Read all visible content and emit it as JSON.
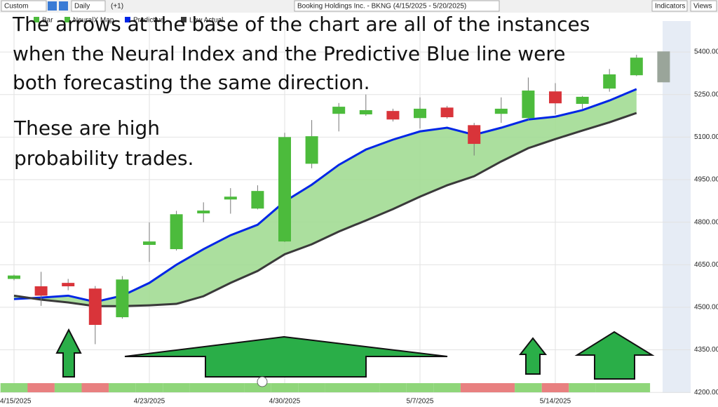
{
  "toolbar": {
    "range": "Custom",
    "period": "Daily",
    "offset": "(+1)",
    "symbol": "Booking Holdings Inc. - BKNG (4/15/2025 - 5/20/2025)",
    "indicators": "Indicators",
    "views": "Views"
  },
  "annotations": [
    "The arrows at the base of the chart are all of the instances",
    "when the Neural Index and the Predictive Blue line were",
    "both forecasting the same direction.",
    "These are high",
    "probability trades."
  ],
  "chart_data": {
    "type": "candlestick",
    "categories": [
      "4/15/2025",
      null,
      null,
      null,
      null,
      "4/23/2025",
      null,
      null,
      null,
      null,
      "4/30/2025",
      null,
      null,
      null,
      null,
      "5/7/2025",
      null,
      null,
      null,
      null,
      "5/14/2025",
      null,
      null,
      null
    ],
    "candles": {
      "name": "Bar",
      "up_color": "#4cbb3c",
      "down_color": "#d9343a",
      "open": [
        4600,
        4574,
        4586,
        4566,
        4465,
        4720,
        4705,
        4831,
        4880,
        4848,
        4732,
        5006,
        5182,
        5180,
        5192,
        5167,
        5204,
        5142,
        5182,
        5167,
        5261,
        5217,
        5271,
        5318
      ],
      "high": [
        4615,
        4625,
        4600,
        4575,
        4610,
        4799,
        4840,
        4870,
        4920,
        4930,
        5115,
        5160,
        5220,
        5250,
        5200,
        5240,
        5210,
        5150,
        5240,
        5310,
        5290,
        5245,
        5340,
        5390
      ],
      "low": [
        4595,
        4505,
        4560,
        4370,
        4460,
        4660,
        4700,
        4800,
        4830,
        4845,
        4730,
        4990,
        5120,
        5175,
        5155,
        5130,
        5165,
        5035,
        5150,
        5160,
        5180,
        5200,
        5260,
        5315
      ],
      "close": [
        4612,
        4541,
        4574,
        4438,
        4598,
        4732,
        4828,
        4841,
        4890,
        4910,
        5100,
        5103,
        5207,
        5195,
        5162,
        5200,
        5170,
        5076,
        5200,
        5264,
        5219,
        5242,
        5321,
        5380
      ]
    },
    "forecast": {
      "open": 5293,
      "close": 5402,
      "color": "#9aa59a"
    },
    "series": [
      {
        "name": "Predictive",
        "color": "#0026e6",
        "values": [
          4529,
          4534,
          4541,
          4519,
          4541,
          4586,
          4650,
          4705,
          4754,
          4791,
          4873,
          4932,
          5002,
          5056,
          5091,
          5120,
          5133,
          5108,
          5133,
          5162,
          5172,
          5195,
          5229,
          5269
        ]
      },
      {
        "name": "Low Actual",
        "color": "#3a3a3a",
        "values": [
          4541,
          4527,
          4517,
          4504,
          4504,
          4507,
          4512,
          4539,
          4586,
          4628,
          4687,
          4722,
          4767,
          4806,
          4846,
          4890,
          4930,
          4962,
          5014,
          5061,
          5093,
          5123,
          5152,
          5185
        ]
      }
    ],
    "area_color": "#a2dc94",
    "neural_index": {
      "name": "NeuralX Map",
      "colors": [
        "#8fd67a",
        "#e88080",
        "#8fd67a",
        "#e88080",
        "#8fd67a",
        "#8fd67a",
        "#8fd67a",
        "#8fd67a",
        "#8fd67a",
        "#8fd67a",
        "#8fd67a",
        "#8fd67a",
        "#8fd67a",
        "#8fd67a",
        "#8fd67a",
        "#8fd67a",
        "#8fd67a",
        "#e88080",
        "#e88080",
        "#8fd67a",
        "#e88080",
        "#8fd67a",
        "#8fd67a",
        "#8fd67a"
      ]
    },
    "ylim": [
      4198,
      5509
    ],
    "yticks": [
      {
        "value": 4200,
        "label": "4200.00"
      },
      {
        "value": 4350,
        "label": "4350.00"
      },
      {
        "value": 4500,
        "label": "4500.00"
      },
      {
        "value": 4650,
        "label": "4650.00"
      },
      {
        "value": 4800,
        "label": "4800.00"
      },
      {
        "value": 4950,
        "label": "4950.00"
      },
      {
        "value": 5100,
        "label": "5100.00"
      },
      {
        "value": 5250,
        "label": "5250.00"
      },
      {
        "value": 5400,
        "label": "5400.00"
      }
    ],
    "grid": true
  }
}
